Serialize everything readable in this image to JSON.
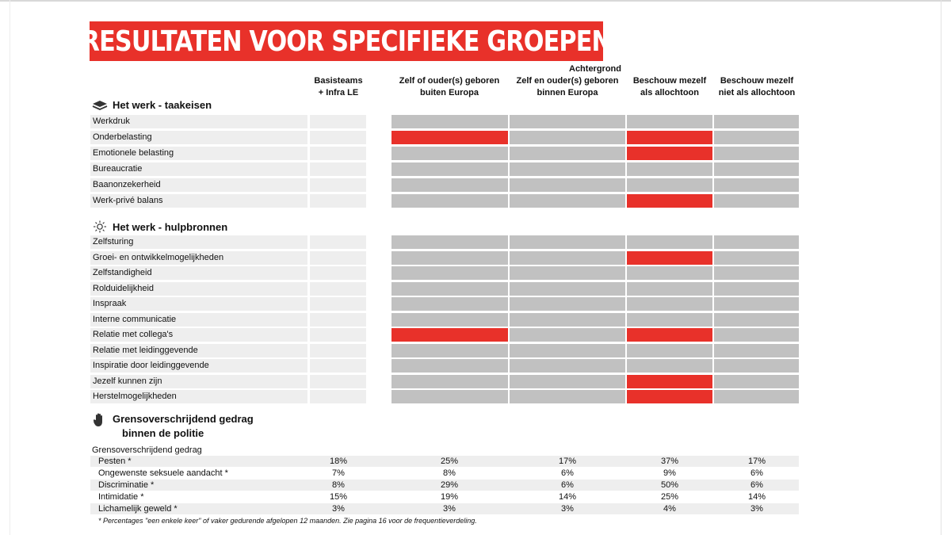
{
  "title": "RESULTATEN VOOR SPECIFIEKE GROEPEN",
  "header": {
    "group_label": "Achtergrond",
    "columns": [
      "Basisteams\n+ Infra LE",
      "Zelf of ouder(s) geboren\nbuiten Europa",
      "Zelf en ouder(s) geboren\nbinnen Europa",
      "Beschouw mezelf\nals allochtoon",
      "Beschouw mezelf\nniet als allochtoon"
    ]
  },
  "colors": {
    "red": "#e8312a",
    "gray": "#c1c1c1",
    "light": "#eeeeee"
  },
  "sections": [
    {
      "title": "Het werk - taakeisen",
      "icon": "layers-icon",
      "rows": [
        {
          "label": "Werkdruk",
          "cells": [
            "e",
            "g",
            "g",
            "g",
            "g"
          ]
        },
        {
          "label": "Onderbelasting",
          "cells": [
            "e",
            "r",
            "g",
            "r",
            "g"
          ]
        },
        {
          "label": "Emotionele belasting",
          "cells": [
            "e",
            "g",
            "g",
            "r",
            "g"
          ]
        },
        {
          "label": "Bureaucratie",
          "cells": [
            "e",
            "g",
            "g",
            "g",
            "g"
          ]
        },
        {
          "label": "Baanonzekerheid",
          "cells": [
            "e",
            "g",
            "g",
            "g",
            "g"
          ]
        },
        {
          "label": "Werk-privé balans",
          "cells": [
            "e",
            "g",
            "g",
            "r",
            "g"
          ]
        }
      ]
    },
    {
      "title": "Het werk - hulpbronnen",
      "icon": "sun-icon",
      "rows": [
        {
          "label": "Zelfsturing",
          "cells": [
            "e",
            "g",
            "g",
            "g",
            "g"
          ]
        },
        {
          "label": "Groei- en ontwikkelmogelijkheden",
          "cells": [
            "e",
            "g",
            "g",
            "r",
            "g"
          ]
        },
        {
          "label": "Zelfstandigheid",
          "cells": [
            "e",
            "g",
            "g",
            "g",
            "g"
          ]
        },
        {
          "label": "Rolduidelijkheid",
          "cells": [
            "e",
            "g",
            "g",
            "g",
            "g"
          ]
        },
        {
          "label": "Inspraak",
          "cells": [
            "e",
            "g",
            "g",
            "g",
            "g"
          ]
        },
        {
          "label": "Interne communicatie",
          "cells": [
            "e",
            "g",
            "g",
            "g",
            "g"
          ]
        },
        {
          "label": "Relatie met collega's",
          "cells": [
            "e",
            "r",
            "g",
            "r",
            "g"
          ]
        },
        {
          "label": "Relatie met leidinggevende",
          "cells": [
            "e",
            "g",
            "g",
            "g",
            "g"
          ]
        },
        {
          "label": "Inspiratie door leidinggevende",
          "cells": [
            "e",
            "g",
            "g",
            "g",
            "g"
          ]
        },
        {
          "label": "Jezelf kunnen zijn",
          "cells": [
            "e",
            "g",
            "g",
            "r",
            "g"
          ]
        },
        {
          "label": "Herstelmogelijkheden",
          "cells": [
            "e",
            "g",
            "g",
            "r",
            "g"
          ]
        }
      ]
    }
  ],
  "behavior": {
    "title_line1": "Grensoverschrijdend gedrag",
    "title_line2": "binnen de politie",
    "icon": "hand-icon",
    "subtitle": "Grensoverschrijdend gedrag",
    "rows": [
      {
        "label": "Pesten *",
        "values": [
          "18%",
          "25%",
          "17%",
          "37%",
          "17%"
        ]
      },
      {
        "label": "Ongewenste seksuele aandacht *",
        "values": [
          "7%",
          "8%",
          "6%",
          "9%",
          "6%"
        ]
      },
      {
        "label": "Discriminatie *",
        "values": [
          "8%",
          "29%",
          "6%",
          "50%",
          "6%"
        ]
      },
      {
        "label": "Intimidatie *",
        "values": [
          "15%",
          "19%",
          "14%",
          "25%",
          "14%"
        ]
      },
      {
        "label": "Lichamelijk geweld *",
        "values": [
          "3%",
          "3%",
          "3%",
          "4%",
          "3%"
        ]
      }
    ],
    "footnote": "* Percentages \"een enkele keer\" of vaker gedurende afgelopen 12 maanden. Zie pagina 16 voor de frequentieverdeling."
  }
}
